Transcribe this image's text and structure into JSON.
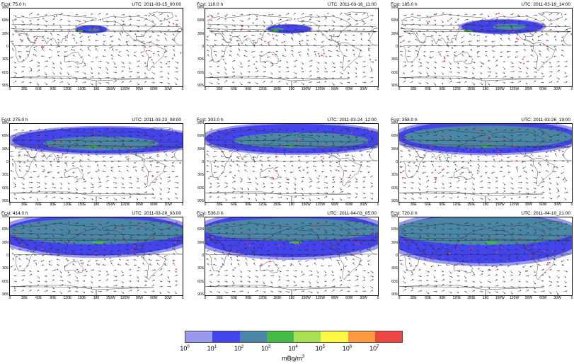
{
  "panels": [
    {
      "fcst": "Fcst: 75.0 h",
      "utc": "UTC: 2011-03-15_00:00"
    },
    {
      "fcst": "Fcst: 110.0 h",
      "utc": "UTC: 2011-03-16_11:00"
    },
    {
      "fcst": "Fcst: 185.0 h",
      "utc": "UTC: 2011-03-19_14:00"
    },
    {
      "fcst": "Fcst: 275.0 h",
      "utc": "UTC: 2011-03-23_08:00"
    },
    {
      "fcst": "Fcst: 303.0 h",
      "utc": "UTC: 2011-03-24_12:00"
    },
    {
      "fcst": "Fcst: 358.0 h",
      "utc": "UTC: 2011-03-26_19:00"
    },
    {
      "fcst": "Fcst: 414.0 h",
      "utc": "UTC: 2011-03-29_03:00"
    },
    {
      "fcst": "Fcst: 536.0 h",
      "utc": "UTC: 2011-04-03_05:00"
    },
    {
      "fcst": "Fcst: 720.0 h",
      "utc": "UTC: 2011-04-10_21:00"
    }
  ],
  "lat_labels": [
    "90N",
    "60N",
    "30N",
    "0",
    "30S",
    "60S",
    "90S"
  ],
  "lon_labels": [
    "0",
    "30E",
    "60E",
    "90E",
    "120E",
    "150E",
    "180",
    "150W",
    "120W",
    "90W",
    "60W",
    "30W",
    "0"
  ],
  "colorbar": {
    "colors": [
      "#9999ee",
      "#4444ee",
      "#4a86a6",
      "#44bb44",
      "#a8e050",
      "#fff840",
      "#ff9940",
      "#ee4444"
    ],
    "base": "10",
    "exponents": [
      "0",
      "1",
      "2",
      "3",
      "4",
      "5",
      "6",
      "7"
    ],
    "units": "mBq/m",
    "units_exp": "3"
  }
}
